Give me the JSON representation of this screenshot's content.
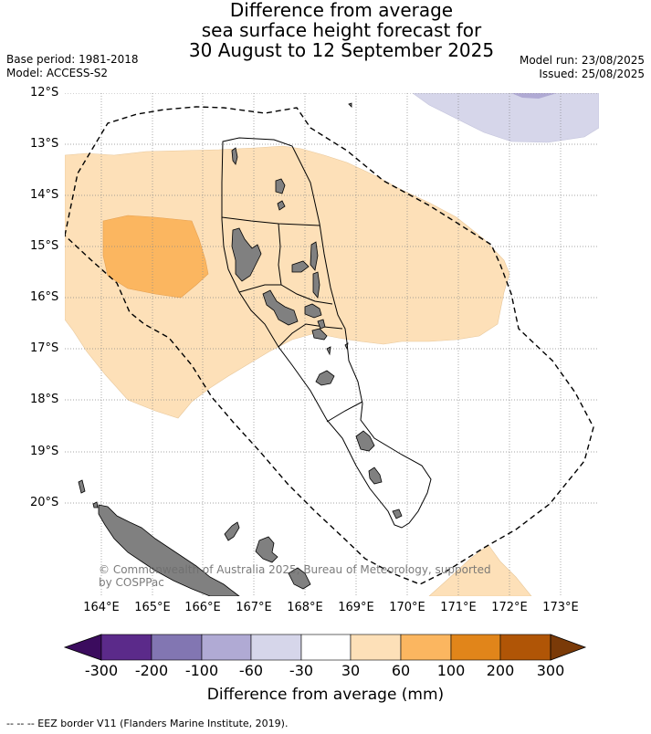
{
  "title": {
    "line1": "Difference from average",
    "line2": "sea surface height forecast for",
    "line3": "30 August to 12 September 2025"
  },
  "meta_left": {
    "base_period": "Base period: 1981-2018",
    "model": "Model: ACCESS-S2"
  },
  "meta_right": {
    "model_run": "Model run: 23/08/2025",
    "issued": "Issued: 25/08/2025"
  },
  "map": {
    "lat_labels": [
      "12°S",
      "13°S",
      "14°S",
      "15°S",
      "16°S",
      "17°S",
      "18°S",
      "19°S",
      "20°S"
    ],
    "lon_labels": [
      "164°E",
      "165°E",
      "166°E",
      "167°E",
      "168°E",
      "169°E",
      "170°E",
      "171°E",
      "172°E",
      "173°E"
    ],
    "copyright_line1": "© Commonwealth of Australia 2025, Bureau of Meteorology, supported",
    "copyright_line2": "by COSPPac",
    "colors": {
      "light_orange": "#fde0b8",
      "mid_orange": "#fbb660",
      "light_purple": "#d6d6ea",
      "mid_purple": "#b0aad4",
      "land": "#808080",
      "grid": "#888888"
    }
  },
  "colorbar": {
    "ticks": [
      "-300",
      "-200",
      "-100",
      "-60",
      "-30",
      "30",
      "60",
      "100",
      "200",
      "300"
    ],
    "colors": [
      "#3b0c5e",
      "#5b2a8a",
      "#8276b2",
      "#b0aad4",
      "#d6d6ea",
      "#ffffff",
      "#fde0b8",
      "#fbb660",
      "#e1851a",
      "#b05506",
      "#7a3a08"
    ],
    "title": "Difference from average (mm)"
  },
  "footnote": "--  --  -- EEZ border V11 (Flanders Marine Institute, 2019)."
}
